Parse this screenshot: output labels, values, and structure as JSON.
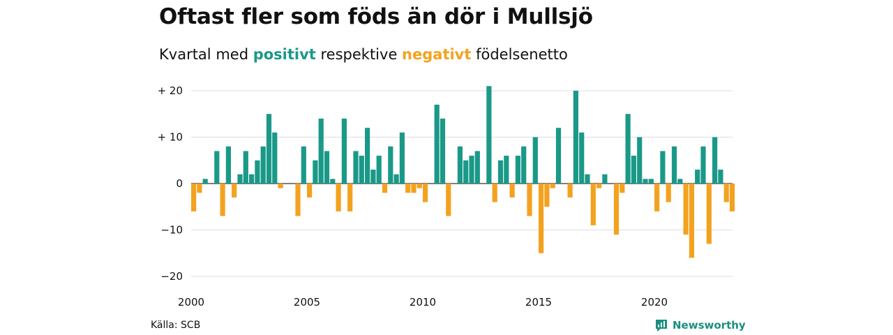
{
  "header": {
    "title": "Oftast fler som föds än dör i Mullsjö",
    "subtitle_before": "Kvartal med ",
    "subtitle_pos": "positivt",
    "subtitle_mid": " respektive ",
    "subtitle_neg": "negativt",
    "subtitle_after": " födelsenetto"
  },
  "footer": {
    "source": "Källa: SCB",
    "brand": "Newsworthy"
  },
  "colors": {
    "positive": "#1a9988",
    "negative": "#f3a21f",
    "grid": "#dddddd"
  },
  "chart_data": {
    "type": "bar",
    "x_start": "2000 Q1",
    "x_ticks": [
      "2000",
      "2005",
      "2010",
      "2015",
      "2020"
    ],
    "y_ticks": [
      20,
      10,
      0,
      -10,
      -20
    ],
    "y_tick_labels": [
      "+ 20",
      "+ 10",
      "0",
      "−10",
      "−20"
    ],
    "ylim": [
      -22,
      22
    ],
    "grid": true,
    "values": [
      -6,
      -2,
      1,
      0,
      7,
      -7,
      8,
      -3,
      2,
      7,
      2,
      5,
      8,
      15,
      11,
      -1,
      0,
      0,
      -7,
      8,
      -3,
      5,
      14,
      7,
      1,
      -6,
      14,
      -6,
      7,
      6,
      12,
      3,
      6,
      -2,
      8,
      2,
      11,
      -2,
      -2,
      -1,
      -4,
      0,
      17,
      14,
      -7,
      0,
      8,
      5,
      6,
      7,
      0,
      21,
      -4,
      5,
      6,
      -3,
      6,
      8,
      -7,
      10,
      -15,
      -5,
      -1,
      12,
      0,
      -3,
      20,
      11,
      2,
      -9,
      -1,
      2,
      0,
      -11,
      -2,
      15,
      6,
      10,
      1,
      1,
      -6,
      7,
      -4,
      8,
      1,
      -11,
      -16,
      3,
      8,
      -13,
      10,
      3,
      -4,
      -6
    ]
  }
}
